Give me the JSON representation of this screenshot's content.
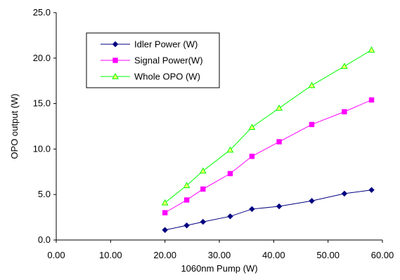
{
  "chart_data": {
    "type": "line",
    "title": "",
    "xlabel": "1060nm Pump (W)",
    "ylabel": "OPO output (W)",
    "xlim": [
      0,
      60
    ],
    "ylim": [
      0,
      25
    ],
    "xticks": [
      "0.00",
      "10.00",
      "20.00",
      "30.00",
      "40.00",
      "50.00",
      "60.00"
    ],
    "yticks": [
      "0.0",
      "5.0",
      "10.0",
      "15.0",
      "20.0",
      "25.0"
    ],
    "grid": false,
    "legend_position": "top-left",
    "x": [
      20,
      24,
      27,
      32,
      36,
      41,
      47,
      53,
      58
    ],
    "series": [
      {
        "name": "Idler Power (W)",
        "color": "#000080",
        "marker": "diamond",
        "values": [
          1.1,
          1.6,
          2.0,
          2.6,
          3.4,
          3.7,
          4.3,
          5.1,
          5.5
        ]
      },
      {
        "name": "Signal Power(W)",
        "color": "#FF00FF",
        "marker": "square",
        "values": [
          3.0,
          4.4,
          5.6,
          7.3,
          9.2,
          10.8,
          12.7,
          14.1,
          15.4
        ]
      },
      {
        "name": "Whole OPO (W)",
        "color": "#00FF00",
        "marker": "triangle",
        "values": [
          4.1,
          6.0,
          7.6,
          9.9,
          12.4,
          14.5,
          17.0,
          19.1,
          20.9
        ]
      }
    ]
  }
}
